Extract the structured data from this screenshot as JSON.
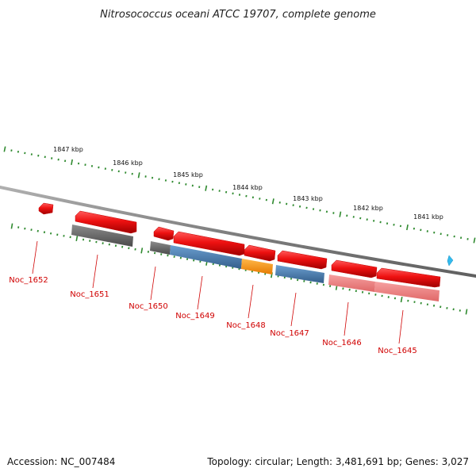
{
  "title": "Nitrosococcus oceani ATCC 19707, complete genome",
  "footer": {
    "accession": "Accession: NC_007484",
    "summary": "Topology: circular; Length: 3,481,691 bp; Genes: 3,027"
  },
  "scale_labels": [
    "1847 kbp",
    "1846 kbp",
    "1845 kbp",
    "1844 kbp",
    "1843 kbp",
    "1842 kbp",
    "1841 kbp"
  ],
  "colors": {
    "backbone": "#8a8a8a",
    "tick": "#2f8a2f",
    "forward_gene": "#ee1111",
    "reverse_grey": "#666666",
    "reverse_blue": "#4a7fb5",
    "reverse_orange": "#ff9a1a",
    "reverse_pink": "#f08080",
    "label": "#d00000",
    "marker": "#33bbee"
  },
  "genes": [
    {
      "label": "Noc_1652",
      "strand": "+",
      "color": "forward_gene"
    },
    {
      "label": "Noc_1651",
      "strand": "+/-",
      "color": "reverse_grey"
    },
    {
      "label": "Noc_1650",
      "strand": "+/-",
      "color": "reverse_grey"
    },
    {
      "label": "Noc_1649",
      "strand": "+/-",
      "color": "reverse_blue"
    },
    {
      "label": "Noc_1648",
      "strand": "+/-",
      "color": "reverse_orange"
    },
    {
      "label": "Noc_1647",
      "strand": "+/-",
      "color": "reverse_blue"
    },
    {
      "label": "Noc_1646",
      "strand": "+/-",
      "color": "reverse_pink"
    },
    {
      "label": "Noc_1645",
      "strand": "+/-",
      "color": "reverse_pink"
    }
  ]
}
